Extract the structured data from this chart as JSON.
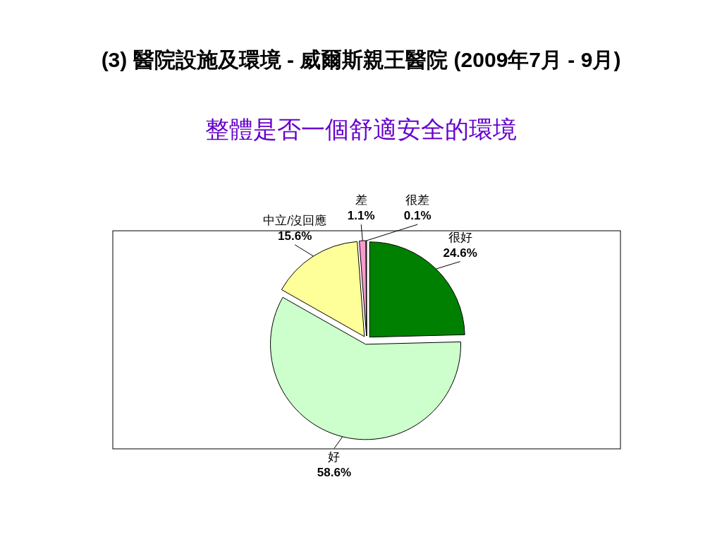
{
  "chart_data": {
    "type": "pie",
    "title": "(3) 醫院設施及環境 - 威爾斯親王醫院 (2009年7月 - 9月)",
    "subtitle": "整體是否一個舒適安全的環境",
    "categories": [
      "很好",
      "好",
      "中立/沒回應",
      "差",
      "很差"
    ],
    "values": [
      24.6,
      58.6,
      15.6,
      1.1,
      0.1
    ],
    "value_labels": [
      "24.6%",
      "58.6%",
      "15.6%",
      "1.1%",
      "0.1%"
    ],
    "colors": [
      "#008000",
      "#ccffcc",
      "#ffff99",
      "#ff99cc",
      "#ffffff"
    ]
  }
}
